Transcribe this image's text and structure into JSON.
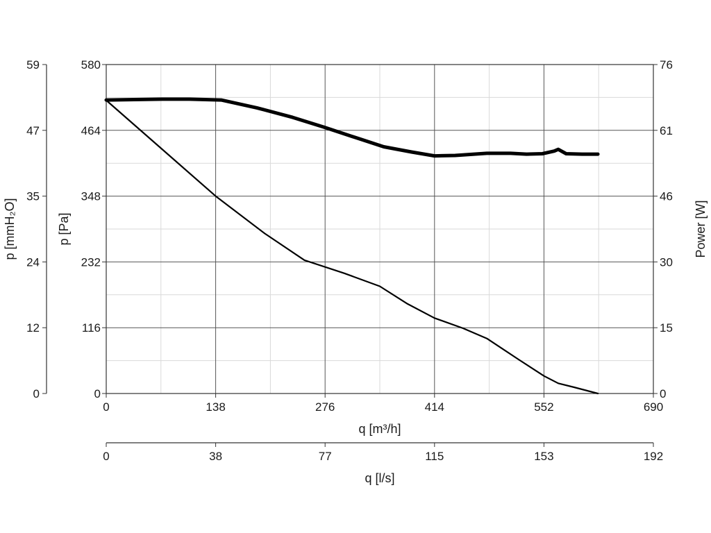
{
  "chart_data": {
    "type": "line",
    "x": {
      "label": "q [m³/h]",
      "ticks": [
        "0",
        "138",
        "276",
        "414",
        "552",
        "690"
      ],
      "range": [
        0,
        690
      ]
    },
    "x2": {
      "label": "q [l/s]",
      "ticks": [
        "0",
        "38",
        "77",
        "115",
        "153",
        "192"
      ]
    },
    "y": {
      "label": "p [Pa]",
      "ticks": [
        "0",
        "116",
        "232",
        "348",
        "464",
        "580"
      ],
      "range": [
        0,
        580
      ]
    },
    "y_left2": {
      "label": "p [mmH₂O]",
      "ticks": [
        "0",
        "12",
        "24",
        "35",
        "47",
        "59"
      ]
    },
    "y2": {
      "label": "Power [W]",
      "ticks": [
        "0",
        "15",
        "30",
        "46",
        "61",
        "76"
      ],
      "range": [
        0,
        76
      ]
    },
    "grid": true,
    "series": [
      {
        "axis": "y",
        "stroke": "#000000",
        "width": "thin",
        "points": [
          [
            0,
            517
          ],
          [
            138,
            348
          ],
          [
            200,
            282
          ],
          [
            250,
            235
          ],
          [
            300,
            212
          ],
          [
            345,
            189
          ],
          [
            380,
            158
          ],
          [
            414,
            133
          ],
          [
            450,
            115
          ],
          [
            480,
            97
          ],
          [
            520,
            60
          ],
          [
            552,
            31
          ],
          [
            570,
            18
          ],
          [
            590,
            11
          ],
          [
            620,
            0
          ]
        ]
      },
      {
        "axis": "y2",
        "stroke": "#000000",
        "width": "thick",
        "points": [
          [
            0,
            67.8
          ],
          [
            35,
            67.9
          ],
          [
            70,
            68.0
          ],
          [
            105,
            68.0
          ],
          [
            145,
            67.8
          ],
          [
            190,
            66.0
          ],
          [
            235,
            63.8
          ],
          [
            275,
            61.5
          ],
          [
            320,
            58.8
          ],
          [
            350,
            57.0
          ],
          [
            385,
            55.8
          ],
          [
            414,
            54.9
          ],
          [
            440,
            55.0
          ],
          [
            480,
            55.5
          ],
          [
            510,
            55.5
          ],
          [
            530,
            55.3
          ],
          [
            550,
            55.4
          ],
          [
            565,
            56.0
          ],
          [
            570,
            56.4
          ],
          [
            580,
            55.4
          ],
          [
            600,
            55.3
          ],
          [
            620,
            55.3
          ]
        ]
      }
    ]
  }
}
